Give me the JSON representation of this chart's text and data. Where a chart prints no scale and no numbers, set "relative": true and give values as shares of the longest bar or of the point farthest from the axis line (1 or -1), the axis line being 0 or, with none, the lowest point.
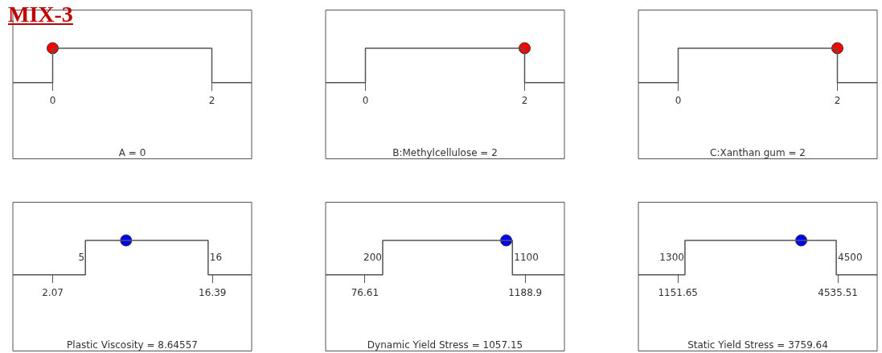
{
  "chart_data": [
    {
      "type": "other",
      "title": "MIX-3"
    },
    {
      "type": "line",
      "relative": true,
      "xlabel": "A = 0",
      "xlim": [
        -0.5,
        2.5
      ],
      "xticks": [
        0,
        2
      ],
      "series": [
        {
          "type": "line",
          "color": "#555555",
          "x": [
            -0.5,
            0,
            0,
            2,
            2,
            2.5
          ],
          "values": [
            0,
            0,
            1,
            1,
            0,
            0
          ]
        },
        {
          "type": "scatter",
          "color": "#ff0000",
          "marker": "circle",
          "x": [
            0
          ],
          "values": [
            1
          ]
        }
      ]
    },
    {
      "type": "line",
      "relative": true,
      "xlabel": "B:Methylcellulose = 2",
      "xlim": [
        -0.5,
        2.5
      ],
      "xticks": [
        0,
        2
      ],
      "series": [
        {
          "type": "line",
          "color": "#555555",
          "x": [
            -0.5,
            0,
            0,
            2,
            2,
            2.5
          ],
          "values": [
            0,
            0,
            1,
            1,
            0,
            0
          ]
        },
        {
          "type": "scatter",
          "color": "#ff0000",
          "marker": "circle",
          "x": [
            2
          ],
          "values": [
            1
          ]
        }
      ]
    },
    {
      "type": "line",
      "relative": true,
      "xlabel": "C:Xanthan gum = 2",
      "xlim": [
        -0.5,
        2.5
      ],
      "xticks": [
        0,
        2
      ],
      "series": [
        {
          "type": "line",
          "color": "#555555",
          "x": [
            -0.5,
            0,
            0,
            2,
            2,
            2.5
          ],
          "values": [
            0,
            0,
            1,
            1,
            0,
            0
          ]
        },
        {
          "type": "scatter",
          "color": "#ff0000",
          "marker": "circle",
          "x": [
            2
          ],
          "values": [
            1
          ]
        }
      ]
    },
    {
      "type": "line",
      "relative": true,
      "xlabel": "Plastic Viscosity = 8.64557",
      "xlim": [
        -1.5,
        19.9
      ],
      "xticks": [
        2.07,
        16.39
      ],
      "annotations": [
        {
          "text": "5",
          "x": 5,
          "y": 0.5
        },
        {
          "text": "16",
          "x": 16,
          "y": 0.5
        }
      ],
      "series": [
        {
          "type": "line",
          "color": "#555555",
          "x": [
            -1.5,
            5,
            5,
            16,
            16,
            19.9
          ],
          "values": [
            0,
            0,
            1,
            1,
            0,
            0
          ]
        },
        {
          "type": "scatter",
          "color": "#0000ff",
          "marker": "circle",
          "x": [
            8.64557
          ],
          "values": [
            1
          ]
        }
      ]
    },
    {
      "type": "line",
      "relative": true,
      "xlabel": "Dynamic Yield Stress = 1057.15",
      "xlim": [
        -196,
        1461
      ],
      "xticks": [
        76.61,
        1188.9
      ],
      "annotations": [
        {
          "text": "200",
          "x": 200,
          "y": 0.5
        },
        {
          "text": "1100",
          "x": 1100,
          "y": 0.5
        }
      ],
      "series": [
        {
          "type": "line",
          "color": "#555555",
          "x": [
            -196,
            200,
            200,
            1100,
            1100,
            1461
          ],
          "values": [
            0,
            0,
            1,
            1,
            0,
            0
          ]
        },
        {
          "type": "scatter",
          "color": "#0000ff",
          "marker": "circle",
          "x": [
            1057.15
          ],
          "values": [
            1
          ]
        }
      ]
    },
    {
      "type": "line",
      "relative": true,
      "xlabel": "Static Yield Stress = 3759.64",
      "xlim": [
        315,
        5366
      ],
      "xticks": [
        1151.65,
        4535.51
      ],
      "annotations": [
        {
          "text": "1300",
          "x": 1300,
          "y": 0.5
        },
        {
          "text": "4500",
          "x": 4500,
          "y": 0.5
        }
      ],
      "series": [
        {
          "type": "line",
          "color": "#555555",
          "x": [
            315,
            1300,
            1300,
            4500,
            4500,
            5366
          ],
          "values": [
            0,
            0,
            1,
            1,
            0,
            0
          ]
        },
        {
          "type": "scatter",
          "color": "#0000ff",
          "marker": "circle",
          "x": [
            3759.64
          ],
          "values": [
            1
          ]
        }
      ]
    }
  ]
}
